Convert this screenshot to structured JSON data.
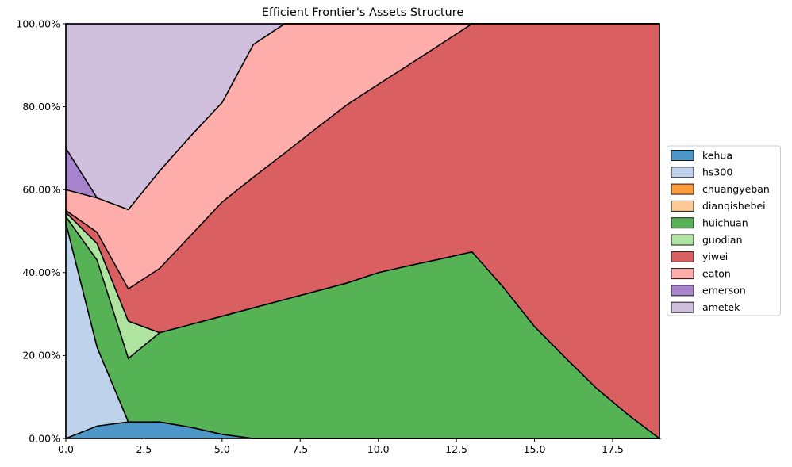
{
  "chart_data": {
    "type": "area",
    "stacked": true,
    "title": "Efficient Frontier's Assets Structure",
    "xlabel": "",
    "ylabel": "",
    "xlim": [
      0,
      19
    ],
    "ylim": [
      0,
      100
    ],
    "grid": "dotted",
    "legend_position": "right-outside",
    "x": [
      0,
      1,
      2,
      3,
      4,
      5,
      6,
      7,
      8,
      9,
      10,
      11,
      12,
      13,
      14,
      15,
      16,
      17,
      18,
      19
    ],
    "x_ticks": [
      {
        "v": 0,
        "label": "0.0"
      },
      {
        "v": 2.5,
        "label": "2.5"
      },
      {
        "v": 5,
        "label": "5.0"
      },
      {
        "v": 7.5,
        "label": "7.5"
      },
      {
        "v": 10,
        "label": "10.0"
      },
      {
        "v": 12.5,
        "label": "12.5"
      },
      {
        "v": 15,
        "label": "15.0"
      },
      {
        "v": 17.5,
        "label": "17.5"
      }
    ],
    "y_ticks": [
      {
        "v": 0,
        "label": "0.00%"
      },
      {
        "v": 20,
        "label": "20.00%"
      },
      {
        "v": 40,
        "label": "40.00%"
      },
      {
        "v": 60,
        "label": "60.00%"
      },
      {
        "v": 80,
        "label": "80.00%"
      },
      {
        "v": 100,
        "label": "100.00%"
      }
    ],
    "edge_color": "#000000",
    "grid_color": "#c9c9c9",
    "series": [
      {
        "name": "kehua",
        "color": "#4c97c7",
        "values": [
          0,
          3,
          4,
          4,
          2.7,
          1,
          0,
          0,
          0,
          0,
          0,
          0,
          0,
          0,
          0,
          0,
          0,
          0,
          0,
          0
        ]
      },
      {
        "name": "hs300",
        "color": "#bed2ec",
        "values": [
          52,
          19,
          0,
          0,
          0,
          0,
          0,
          0,
          0,
          0,
          0,
          0,
          0,
          0,
          0,
          0,
          0,
          0,
          0,
          0
        ]
      },
      {
        "name": "chuangyeban",
        "color": "#ff9c3e",
        "values": [
          0,
          0,
          0,
          0,
          0,
          0,
          0,
          0,
          0,
          0,
          0,
          0,
          0,
          0,
          0,
          0,
          0,
          0,
          0,
          0
        ]
      },
      {
        "name": "dianqishebei",
        "color": "#ffc994",
        "values": [
          0,
          0,
          0,
          0,
          0,
          0,
          0,
          0,
          0,
          0,
          0,
          0,
          0,
          0,
          0,
          0,
          0,
          0,
          0,
          0
        ]
      },
      {
        "name": "huichuan",
        "color": "#55b255",
        "values": [
          1.5,
          21,
          15.3,
          21.5,
          24.8,
          28.5,
          31.5,
          33.5,
          35.5,
          37.5,
          40,
          41.7,
          43.3,
          45,
          36.5,
          27,
          19.4,
          12,
          5.7,
          0
        ]
      },
      {
        "name": "guodian",
        "color": "#aee3a0",
        "values": [
          1,
          4,
          9,
          0,
          0,
          0,
          0,
          0,
          0,
          0,
          0,
          0,
          0,
          0,
          0,
          0,
          0,
          0,
          0,
          0
        ]
      },
      {
        "name": "yiwei",
        "color": "#d95f60",
        "values": [
          0.5,
          2.7,
          7.8,
          15.5,
          21.5,
          27.5,
          31.5,
          35.3,
          39.2,
          43,
          45.4,
          48.5,
          51.8,
          55,
          63.5,
          73,
          80.6,
          88,
          94.3,
          100
        ]
      },
      {
        "name": "eaton",
        "color": "#ffadab",
        "values": [
          5,
          8.3,
          19.1,
          23.5,
          24,
          24,
          32,
          31.2,
          25.3,
          19.5,
          14.6,
          9.8,
          4.9,
          0,
          0,
          0,
          0,
          0,
          0,
          0
        ]
      },
      {
        "name": "emerson",
        "color": "#a784cb",
        "values": [
          10,
          0,
          0,
          0,
          0,
          0,
          0,
          0,
          0,
          0,
          0,
          0,
          0,
          0,
          0,
          0,
          0,
          0,
          0,
          0
        ]
      },
      {
        "name": "ametek",
        "color": "#d0c0de",
        "values": [
          30,
          42,
          44.8,
          35.5,
          27,
          19,
          5,
          0,
          0,
          0,
          0,
          0,
          0,
          0,
          0,
          0,
          0,
          0,
          0,
          0
        ]
      }
    ]
  }
}
